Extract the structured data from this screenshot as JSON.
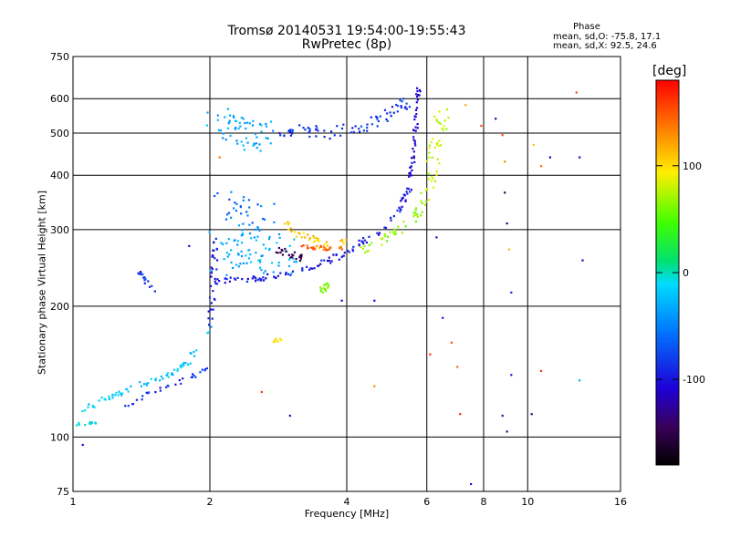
{
  "header": {
    "title": "Tromsø 20140531 19:54:00-19:55:43",
    "subtitle": "RwPretec (8p)",
    "phase_title": "Phase",
    "phase_o": "mean, sd,O: -75.8, 17.1",
    "phase_x": "mean, sd,X:  92.5, 24.6"
  },
  "colorbar": {
    "unit": "[deg]",
    "ticks": [
      100,
      0,
      -100
    ],
    "range": [
      -180,
      180
    ],
    "scale": "rainbow"
  },
  "chart_data": {
    "type": "scatter",
    "xlabel": "Frequency [MHz]",
    "ylabel": "Stationary phase Virtual Height [km]",
    "xscale": "log",
    "yscale": "log",
    "xlim": [
      1,
      16
    ],
    "ylim": [
      75,
      750
    ],
    "xticks": [
      1,
      2,
      4,
      6,
      8,
      10,
      16
    ],
    "yticks": [
      75,
      100,
      200,
      300,
      400,
      500,
      600,
      750
    ],
    "grid": true,
    "colorbar_variable": "phase (deg)",
    "traces": [
      {
        "x": [
          1.02,
          1.1,
          1.2,
          1.35,
          1.5,
          1.65,
          1.8,
          1.92,
          2.0,
          2.03
        ],
        "y": [
          112,
          118,
          124,
          130,
          135,
          140,
          150,
          165,
          175,
          185
        ],
        "phase": -20,
        "spread": 4,
        "n": 70
      },
      {
        "x": [
          1.0,
          1.06,
          1.12
        ],
        "y": [
          107,
          107,
          108
        ],
        "phase": -5,
        "spread": 2,
        "n": 12
      },
      {
        "x": [
          1.3,
          1.45,
          1.6,
          1.75,
          1.9,
          2.0
        ],
        "y": [
          117,
          125,
          130,
          135,
          140,
          145
        ],
        "phase": -90,
        "spread": 3,
        "n": 30
      },
      {
        "x": [
          2.0,
          2.02,
          2.04,
          2.05,
          2.06
        ],
        "y": [
          180,
          200,
          230,
          260,
          300
        ],
        "phase": -100,
        "spread": 4,
        "n": 30
      },
      {
        "x": [
          2.05,
          2.3,
          2.6,
          3.0,
          3.4,
          3.9,
          4.3,
          4.8,
          5.2,
          5.5
        ],
        "y": [
          228,
          230,
          232,
          238,
          248,
          262,
          280,
          300,
          330,
          380
        ],
        "phase": -100,
        "spread": 4,
        "n": 110
      },
      {
        "x": [
          5.5,
          5.6,
          5.7,
          5.75
        ],
        "y": [
          380,
          450,
          550,
          640
        ],
        "phase": -110,
        "spread": 3,
        "n": 45
      },
      {
        "x": [
          2.1,
          2.4,
          2.7,
          2.9
        ],
        "y": [
          260,
          275,
          270,
          265
        ],
        "phase": -30,
        "spread": 30,
        "n": 80
      },
      {
        "x": [
          2.1,
          2.4,
          2.7
        ],
        "y": [
          350,
          330,
          320
        ],
        "phase": -60,
        "spread": 20,
        "n": 30
      },
      {
        "x": [
          2.9,
          3.2,
          3.6,
          4.0
        ],
        "y": [
          310,
          290,
          275,
          280
        ],
        "phase": 110,
        "spread": 6,
        "n": 40
      },
      {
        "x": [
          3.2,
          3.5,
          3.9
        ],
        "y": [
          275,
          272,
          272
        ],
        "phase": 145,
        "spread": 3,
        "n": 25
      },
      {
        "x": [
          2.8,
          3.0,
          3.2
        ],
        "y": [
          270,
          262,
          255
        ],
        "phase": -150,
        "spread": 5,
        "n": 25
      },
      {
        "x": [
          2.1,
          2.3,
          2.5,
          2.7
        ],
        "y": [
          540,
          500,
          490,
          500
        ],
        "phase": -35,
        "spread": 20,
        "n": 60
      },
      {
        "x": [
          2.8,
          3.2,
          3.6,
          4.0,
          4.4,
          5.0,
          5.5
        ],
        "y": [
          505,
          510,
          500,
          515,
          520,
          560,
          590
        ],
        "phase": -85,
        "spread": 8,
        "n": 75
      },
      {
        "x": [
          4.3,
          4.8,
          5.2,
          5.6,
          5.9
        ],
        "y": [
          270,
          285,
          300,
          320,
          345
        ],
        "phase": 65,
        "spread": 6,
        "n": 40
      },
      {
        "x": [
          6.0,
          6.1,
          6.3,
          6.5
        ],
        "y": [
          360,
          410,
          480,
          560
        ],
        "phase": 80,
        "spread": 10,
        "n": 45
      },
      {
        "x": [
          3.5,
          3.6
        ],
        "y": [
          215,
          225
        ],
        "phase": 60,
        "spread": 6,
        "n": 15
      },
      {
        "x": [
          1.38,
          1.45,
          1.52
        ],
        "y": [
          245,
          228,
          218
        ],
        "phase": -85,
        "spread": 3,
        "n": 15
      },
      {
        "x": [
          2.75,
          2.85
        ],
        "y": [
          163,
          168
        ],
        "phase": 95,
        "spread": 3,
        "n": 10
      }
    ],
    "scattered_points": [
      {
        "x": 6.8,
        "y": 165,
        "phase": 150
      },
      {
        "x": 7.0,
        "y": 145,
        "phase": 140
      },
      {
        "x": 7.1,
        "y": 113,
        "phase": 170
      },
      {
        "x": 7.3,
        "y": 580,
        "phase": 120
      },
      {
        "x": 7.9,
        "y": 520,
        "phase": 150
      },
      {
        "x": 8.5,
        "y": 540,
        "phase": -130
      },
      {
        "x": 8.8,
        "y": 495,
        "phase": 150
      },
      {
        "x": 8.9,
        "y": 430,
        "phase": 130
      },
      {
        "x": 8.9,
        "y": 365,
        "phase": -150
      },
      {
        "x": 9.0,
        "y": 310,
        "phase": -130
      },
      {
        "x": 9.1,
        "y": 270,
        "phase": 115
      },
      {
        "x": 9.2,
        "y": 215,
        "phase": -90
      },
      {
        "x": 10.3,
        "y": 470,
        "phase": 110
      },
      {
        "x": 10.7,
        "y": 420,
        "phase": 140
      },
      {
        "x": 11.2,
        "y": 440,
        "phase": -120
      },
      {
        "x": 13.0,
        "y": 440,
        "phase": -120
      },
      {
        "x": 13.2,
        "y": 255,
        "phase": -120
      },
      {
        "x": 13.0,
        "y": 135,
        "phase": -30
      },
      {
        "x": 12.8,
        "y": 620,
        "phase": 150
      },
      {
        "x": 8.8,
        "y": 112,
        "phase": -120
      },
      {
        "x": 9.2,
        "y": 139,
        "phase": -100
      },
      {
        "x": 9.0,
        "y": 103,
        "phase": -130
      },
      {
        "x": 10.2,
        "y": 113,
        "phase": -140
      },
      {
        "x": 10.7,
        "y": 142,
        "phase": 160
      },
      {
        "x": 6.3,
        "y": 288,
        "phase": -120
      },
      {
        "x": 6.5,
        "y": 188,
        "phase": -100
      },
      {
        "x": 6.1,
        "y": 155,
        "phase": 160
      },
      {
        "x": 3.0,
        "y": 112,
        "phase": -130
      },
      {
        "x": 2.6,
        "y": 127,
        "phase": 160
      },
      {
        "x": 4.6,
        "y": 131,
        "phase": 130
      },
      {
        "x": 4.6,
        "y": 206,
        "phase": -110
      },
      {
        "x": 3.9,
        "y": 206,
        "phase": -110
      },
      {
        "x": 7.5,
        "y": 78,
        "phase": -110
      },
      {
        "x": 1.05,
        "y": 96,
        "phase": -110
      },
      {
        "x": 1.8,
        "y": 275,
        "phase": -110
      },
      {
        "x": 2.1,
        "y": 440,
        "phase": 140
      }
    ]
  }
}
